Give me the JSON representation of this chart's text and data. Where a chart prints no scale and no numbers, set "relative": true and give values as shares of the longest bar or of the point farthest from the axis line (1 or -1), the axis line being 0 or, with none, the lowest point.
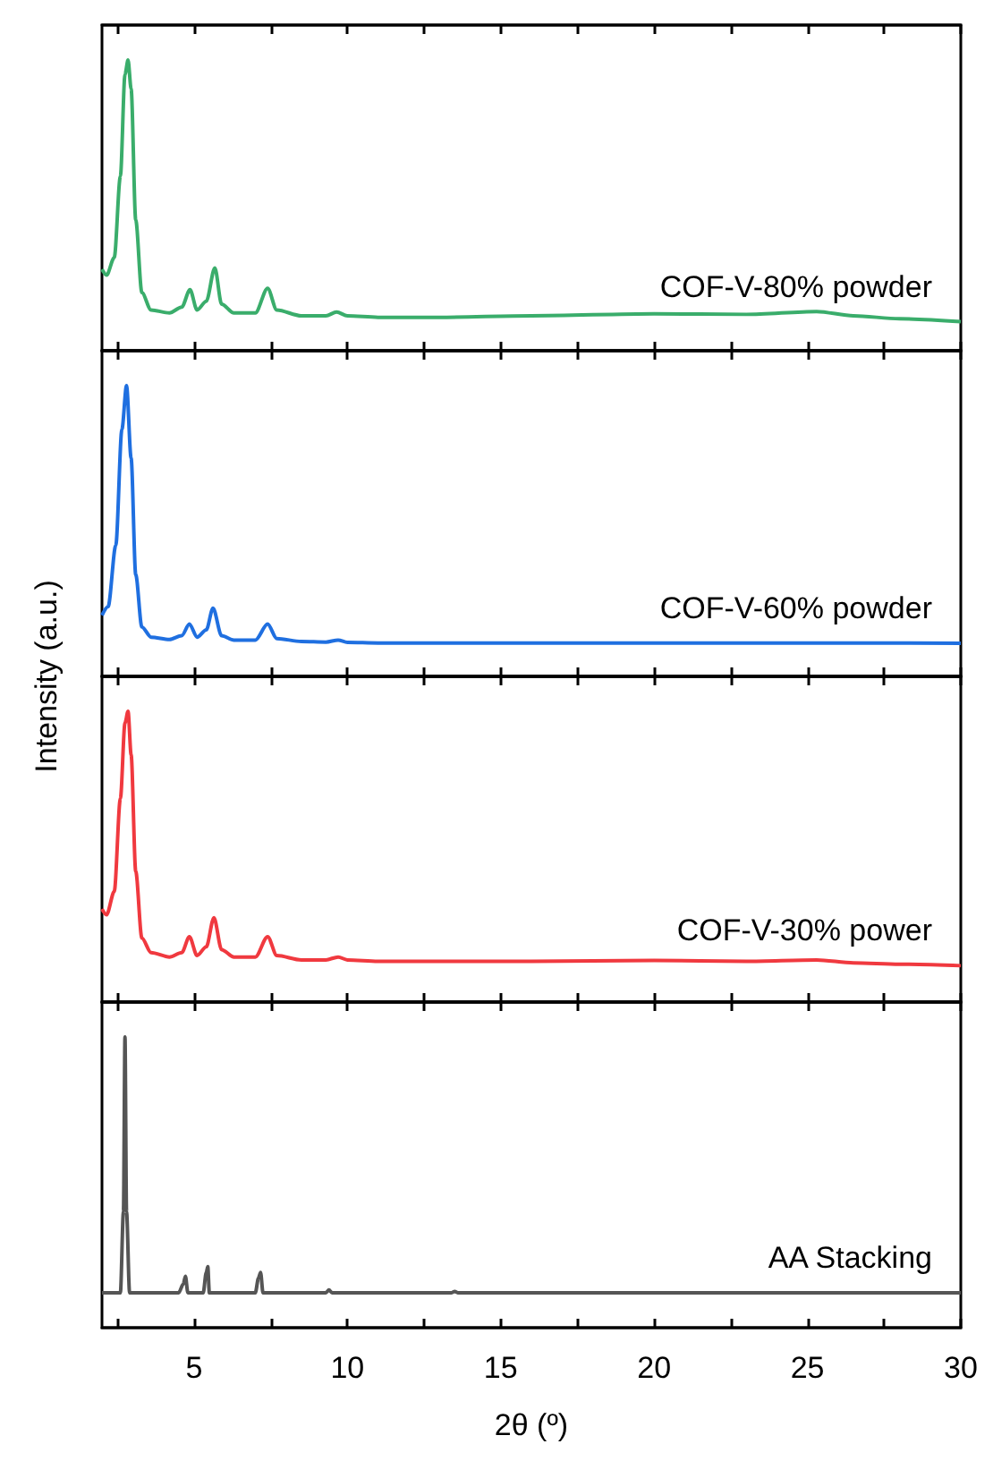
{
  "chart_data": [
    {
      "type": "line",
      "relative": true,
      "xlim": [
        2,
        30
      ],
      "xticks": [
        {
          "value": 2.5,
          "label": null
        },
        5,
        {
          "value": 7.5,
          "label": null
        },
        10,
        {
          "value": 12.5,
          "label": null
        },
        15,
        {
          "value": 17.5,
          "label": null
        },
        20,
        {
          "value": 22.5,
          "label": null
        },
        25,
        {
          "value": 27.5,
          "label": null
        },
        30
      ],
      "tick_labels": false,
      "grid": false,
      "series": [
        {
          "name": "COF-V-80% powder",
          "color": "#3aad6b",
          "x": [
            2,
            2.15,
            2.4,
            2.6,
            2.75,
            2.85,
            2.95,
            3.1,
            3.3,
            3.6,
            4.2,
            4.6,
            4.87,
            5.1,
            5.4,
            5.68,
            5.9,
            6.3,
            7.0,
            7.4,
            7.7,
            8.5,
            9.3,
            9.65,
            10.0,
            11,
            13,
            16,
            20,
            23,
            25.3,
            26.5,
            28,
            30
          ],
          "values": [
            0.28,
            0.26,
            0.32,
            0.6,
            0.95,
            1,
            0.9,
            0.45,
            0.2,
            0.14,
            0.13,
            0.15,
            0.21,
            0.14,
            0.17,
            0.285,
            0.16,
            0.13,
            0.13,
            0.215,
            0.14,
            0.12,
            0.12,
            0.133,
            0.12,
            0.115,
            0.115,
            0.12,
            0.127,
            0.125,
            0.135,
            0.12,
            0.11,
            0.1
          ]
        }
      ]
    },
    {
      "type": "line",
      "relative": true,
      "xlim": [
        2,
        30
      ],
      "xticks": [
        {
          "value": 2.5,
          "label": null
        },
        5,
        {
          "value": 7.5,
          "label": null
        },
        10,
        {
          "value": 12.5,
          "label": null
        },
        15,
        {
          "value": 17.5,
          "label": null
        },
        20,
        {
          "value": 22.5,
          "label": null
        },
        25,
        {
          "value": 27.5,
          "label": null
        },
        30
      ],
      "tick_labels": false,
      "grid": false,
      "series": [
        {
          "name": "COF-V-60% powder",
          "color": "#1f6fe0",
          "x": [
            2,
            2.2,
            2.45,
            2.65,
            2.8,
            2.95,
            3.1,
            3.3,
            3.6,
            4.2,
            4.6,
            4.85,
            5.1,
            5.4,
            5.62,
            5.9,
            6.3,
            7.0,
            7.4,
            7.7,
            8.5,
            9.3,
            9.7,
            10.0,
            11,
            15,
            20,
            25,
            30
          ],
          "values": [
            0.21,
            0.24,
            0.45,
            0.85,
            1,
            0.75,
            0.35,
            0.17,
            0.135,
            0.127,
            0.14,
            0.18,
            0.135,
            0.16,
            0.235,
            0.14,
            0.125,
            0.125,
            0.18,
            0.13,
            0.12,
            0.118,
            0.125,
            0.117,
            0.115,
            0.115,
            0.115,
            0.115,
            0.114
          ]
        }
      ]
    },
    {
      "type": "line",
      "relative": true,
      "xlim": [
        2,
        30
      ],
      "xticks": [
        {
          "value": 2.5,
          "label": null
        },
        5,
        {
          "value": 7.5,
          "label": null
        },
        10,
        {
          "value": 12.5,
          "label": null
        },
        15,
        {
          "value": 17.5,
          "label": null
        },
        20,
        {
          "value": 22.5,
          "label": null
        },
        25,
        {
          "value": 27.5,
          "label": null
        },
        30
      ],
      "tick_labels": false,
      "grid": false,
      "series": [
        {
          "name": "COF-V-30% power",
          "color": "#f0393f",
          "x": [
            2,
            2.15,
            2.4,
            2.6,
            2.75,
            2.85,
            2.95,
            3.1,
            3.3,
            3.6,
            4.2,
            4.6,
            4.85,
            5.1,
            5.4,
            5.65,
            5.9,
            6.3,
            7.0,
            7.4,
            7.7,
            8.5,
            9.3,
            9.7,
            10.0,
            11,
            13,
            16,
            20,
            23,
            25.3,
            26.5,
            28,
            30
          ],
          "values": [
            0.32,
            0.3,
            0.38,
            0.7,
            0.96,
            1,
            0.85,
            0.45,
            0.22,
            0.17,
            0.155,
            0.17,
            0.225,
            0.16,
            0.19,
            0.29,
            0.18,
            0.155,
            0.155,
            0.225,
            0.16,
            0.145,
            0.145,
            0.155,
            0.145,
            0.14,
            0.14,
            0.14,
            0.143,
            0.14,
            0.145,
            0.135,
            0.13,
            0.125
          ]
        }
      ]
    },
    {
      "type": "line",
      "relative": true,
      "xlim": [
        2,
        30
      ],
      "xticks": [
        {
          "value": 2.5,
          "label": null
        },
        5,
        {
          "value": 7.5,
          "label": null
        },
        10,
        {
          "value": 12.5,
          "label": null
        },
        15,
        {
          "value": 17.5,
          "label": null
        },
        20,
        {
          "value": 22.5,
          "label": null
        },
        25,
        {
          "value": 27.5,
          "label": null
        },
        30
      ],
      "tick_labels": "x",
      "grid": false,
      "xlabel": "2θ (º)",
      "ylabel": "Intensity (a.u.)",
      "series": [
        {
          "name": "AA Stacking",
          "color": "#555555",
          "x": [
            2,
            2.6,
            2.7,
            2.75,
            2.8,
            2.9,
            4.5,
            4.65,
            4.72,
            4.8,
            5.3,
            5.4,
            5.45,
            5.5,
            7.0,
            7.1,
            7.17,
            7.25,
            9.3,
            9.4,
            9.5,
            13.4,
            13.5,
            13.6,
            25,
            30
          ],
          "values": [
            0.12,
            0.12,
            0.4,
            1,
            0.4,
            0.12,
            0.12,
            0.15,
            0.177,
            0.12,
            0.12,
            0.19,
            0.21,
            0.12,
            0.12,
            0.17,
            0.19,
            0.12,
            0.12,
            0.13,
            0.12,
            0.12,
            0.125,
            0.12,
            0.12,
            0.12
          ]
        }
      ]
    }
  ]
}
